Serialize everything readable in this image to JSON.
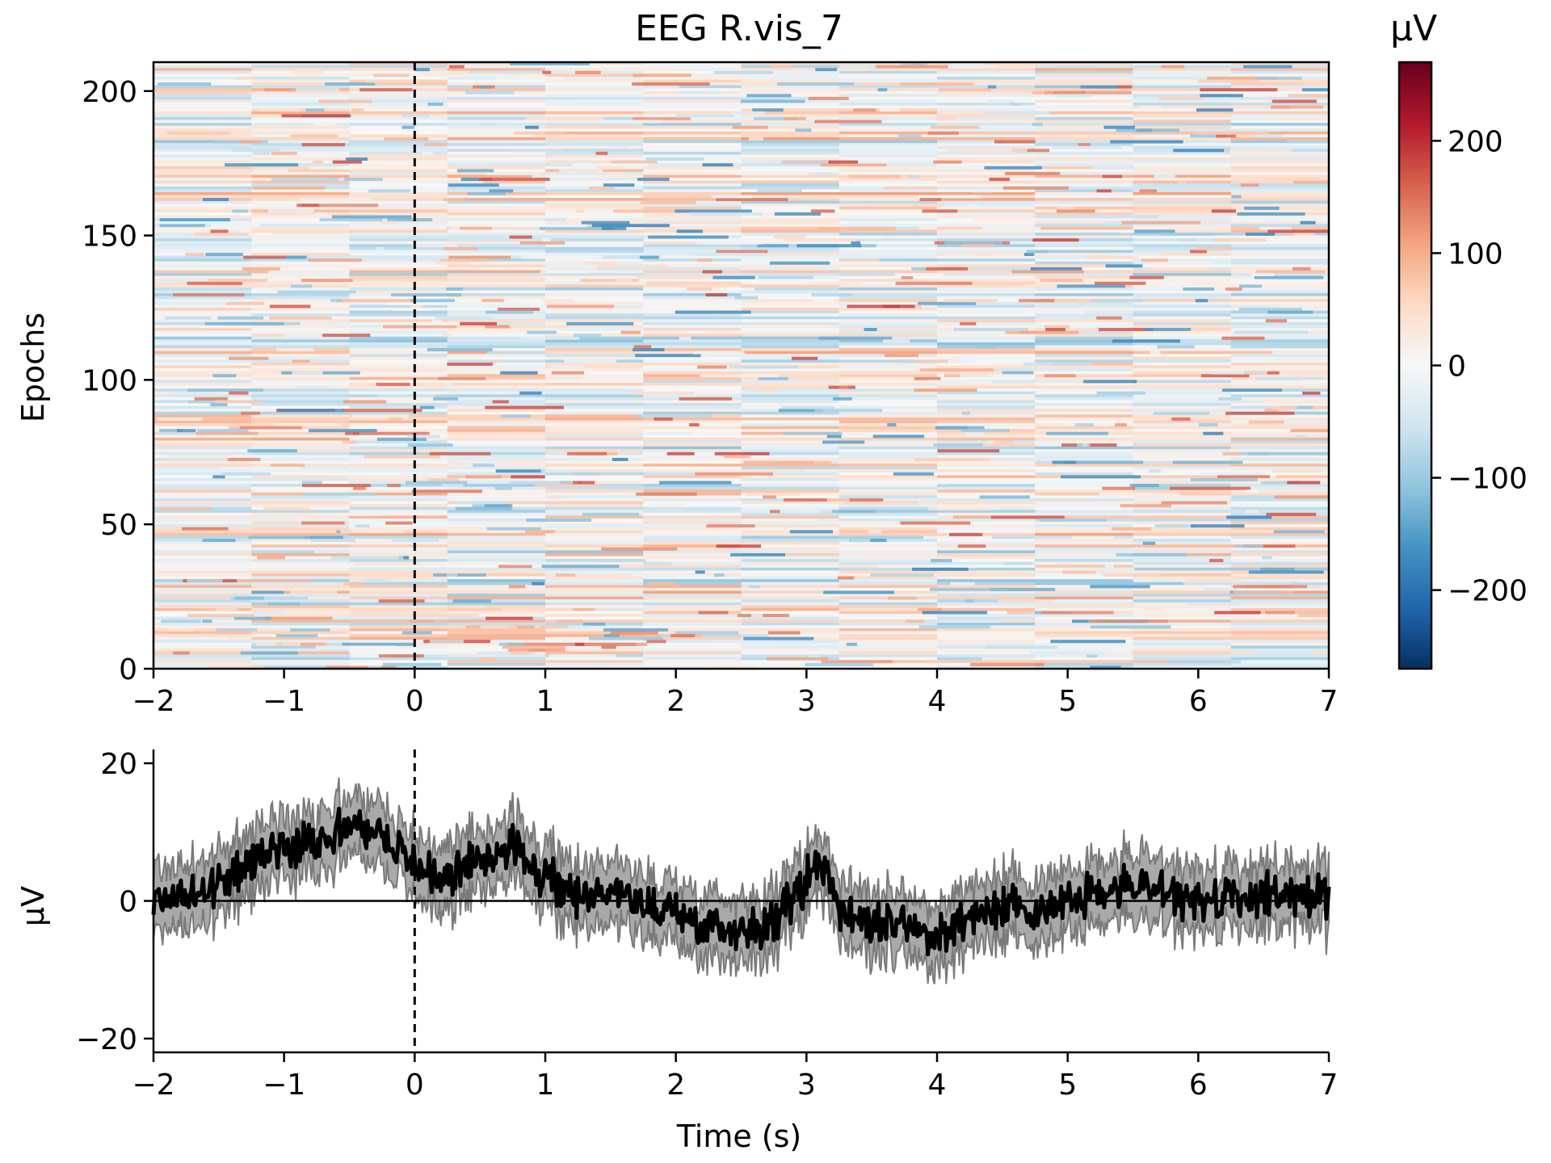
{
  "chart_data": [
    {
      "type": "heatmap",
      "title": "EEG R.vis_7",
      "xlabel": "",
      "ylabel": "Epochs",
      "xlim": [
        -2,
        7
      ],
      "ylim": [
        0,
        210
      ],
      "xticks": [
        "−2",
        "−1",
        "0",
        "1",
        "2",
        "3",
        "4",
        "5",
        "6",
        "7"
      ],
      "xtick_values": [
        -2,
        -1,
        0,
        1,
        2,
        3,
        4,
        5,
        6,
        7
      ],
      "yticks": [
        "0",
        "50",
        "100",
        "150",
        "200"
      ],
      "ytick_values": [
        0,
        50,
        100,
        150,
        200
      ],
      "n_epochs": 210,
      "event_marker_x": 0,
      "colormap": "RdBu_r",
      "colorbar": {
        "label": "µV",
        "range": [
          -270,
          270
        ],
        "ticks": [
          "−200",
          "−100",
          "0",
          "100",
          "200"
        ],
        "tick_values": [
          -200,
          -100,
          0,
          100,
          200
        ]
      }
    },
    {
      "type": "line",
      "title": "",
      "xlabel": "Time (s)",
      "ylabel": "µV",
      "xlim": [
        -2,
        7
      ],
      "ylim": [
        -22,
        22
      ],
      "xticks": [
        "−2",
        "−1",
        "0",
        "1",
        "2",
        "3",
        "4",
        "5",
        "6",
        "7"
      ],
      "xtick_values": [
        -2,
        -1,
        0,
        1,
        2,
        3,
        4,
        5,
        6,
        7
      ],
      "yticks": [
        "−20",
        "0",
        "20"
      ],
      "ytick_values": [
        -20,
        0,
        20
      ],
      "event_marker_x": 0,
      "zero_line": true,
      "band_halfwidth": 3.5,
      "series": [
        {
          "x": [
            -2.0,
            -1.75,
            -1.5,
            -1.25,
            -1.0,
            -0.75,
            -0.5,
            -0.25,
            0.0,
            0.25,
            0.5,
            0.75,
            1.0,
            1.25,
            1.5,
            1.75,
            2.0,
            2.25,
            2.5,
            2.75,
            3.0,
            3.1,
            3.25,
            3.5,
            3.75,
            4.0,
            4.25,
            4.5,
            4.75,
            5.0,
            5.25,
            5.5,
            5.75,
            6.0,
            6.25,
            6.5,
            6.75,
            7.0
          ],
          "values": [
            0,
            1,
            2,
            6,
            8,
            9,
            11,
            10,
            5,
            3,
            6,
            8,
            3,
            1,
            2,
            -1,
            -2,
            -3,
            -4,
            -3,
            3,
            6,
            -1,
            -3,
            -4,
            -5,
            -2,
            -1,
            -1,
            0,
            1,
            2,
            1,
            0,
            0,
            1,
            1,
            0
          ]
        }
      ]
    }
  ],
  "colors": {
    "mean_line": "#000000",
    "band": "#8c8c8c",
    "marker": "#000000"
  }
}
